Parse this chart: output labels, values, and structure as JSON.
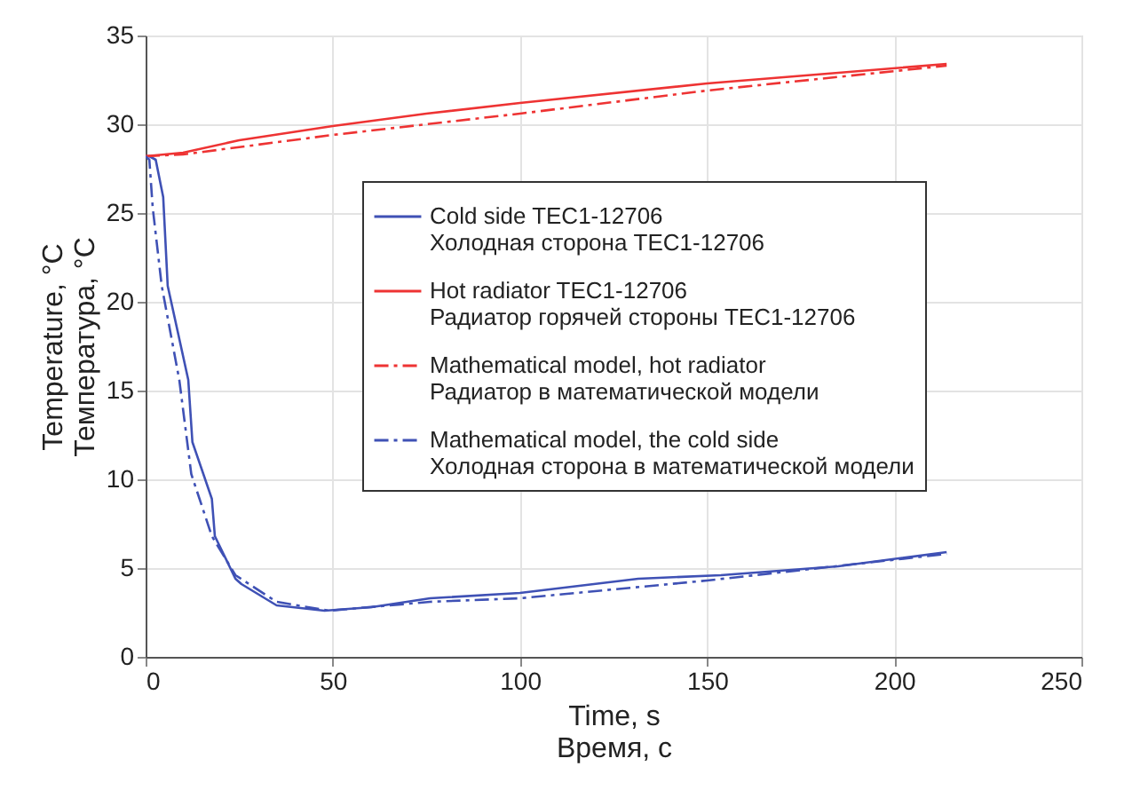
{
  "chart_data": {
    "type": "line",
    "xlabel": "Time, s\nВремя, с",
    "ylabel": "Temperature, °C\nТемпература, °C",
    "xlim": [
      0,
      250
    ],
    "xticks": [
      0,
      50,
      100,
      150,
      200,
      250
    ],
    "ylim": [
      0,
      35
    ],
    "yticks": [
      0,
      5,
      10,
      15,
      20,
      25,
      30,
      35
    ],
    "grid": true,
    "legend": "right",
    "series": [
      {
        "name": "Cold side TEC1-12706\nХолодная сторона TEC1-12706",
        "color": "#3f51b5",
        "line_style": "solid",
        "x": [
          0,
          1,
          2.7,
          4.7,
          5.9,
          11.4,
          12.5,
          17.7,
          18.5,
          24,
          25.6,
          35,
          47.8,
          60.4,
          76,
          100,
          131.6,
          153.7,
          185,
          214
        ],
        "values": [
          28.2,
          28.2,
          28.0,
          25.9,
          20.9,
          15.6,
          12.1,
          8.9,
          6.8,
          4.4,
          4.1,
          2.9,
          2.6,
          2.8,
          3.3,
          3.6,
          4.4,
          4.6,
          5.1,
          5.9
        ]
      },
      {
        "name": "Hot radiator TEC1-12706\nРадиатор горячей стороны TEC1-12706",
        "color": "#ee3333",
        "line_style": "solid",
        "x": [
          0,
          10,
          25,
          50,
          75,
          100,
          150,
          214
        ],
        "values": [
          28.2,
          28.4,
          29.1,
          29.9,
          30.6,
          31.2,
          32.3,
          33.4
        ]
      },
      {
        "name": "Mathematical model, hot radiator\nРадиатор в математической модели",
        "color": "#ee3333",
        "line_style": "dashed",
        "x": [
          0,
          10,
          50,
          100,
          150,
          214
        ],
        "values": [
          28.2,
          28.3,
          29.4,
          30.6,
          31.9,
          33.3
        ]
      },
      {
        "name": "Mathematical model, the cold side\nХолодная сторона в математической модели",
        "color": "#3f51b5",
        "line_style": "dashed",
        "x": [
          0,
          1,
          1.9,
          4.3,
          9,
          12.2,
          17.7,
          24,
          35,
          49,
          76,
          100,
          150,
          214
        ],
        "values": [
          28.2,
          28.0,
          25.3,
          20.9,
          15.6,
          10.3,
          6.8,
          4.6,
          3.1,
          2.6,
          3.1,
          3.3,
          4.3,
          5.8
        ]
      }
    ]
  }
}
